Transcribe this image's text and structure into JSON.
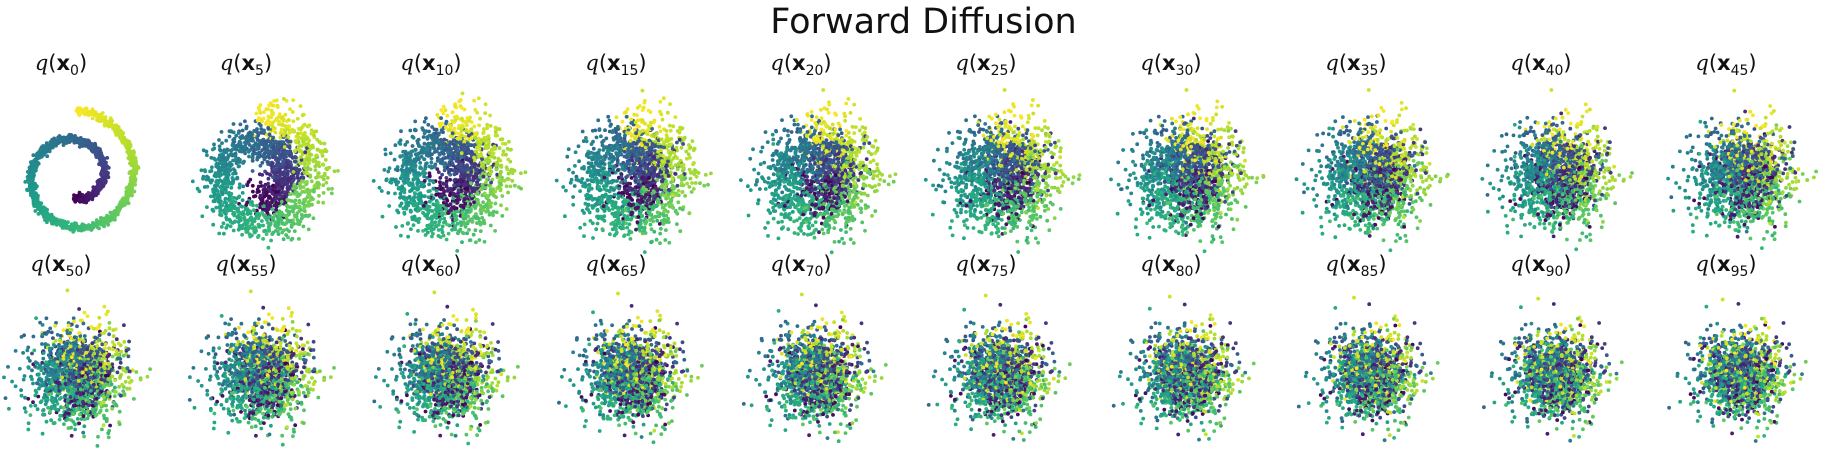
{
  "chart_data": {
    "type": "scatter",
    "title": "Forward Diffusion",
    "panel_label": {
      "prefix": "q(",
      "var": "x",
      "suffix": ")"
    },
    "steps": [
      0,
      5,
      10,
      15,
      20,
      25,
      30,
      35,
      40,
      45,
      50,
      55,
      60,
      65,
      70,
      75,
      80,
      85,
      90,
      95
    ],
    "layout": {
      "rows": 2,
      "cols": 10
    },
    "axes_visible": false,
    "colormap": "viridis",
    "colors": {
      "start": "#440154",
      "mid": "#21918c",
      "end": "#fde725"
    },
    "points_per_panel": 1500,
    "distribution": "swiss-roll spiral progressively noised toward an isotropic Gaussian"
  }
}
